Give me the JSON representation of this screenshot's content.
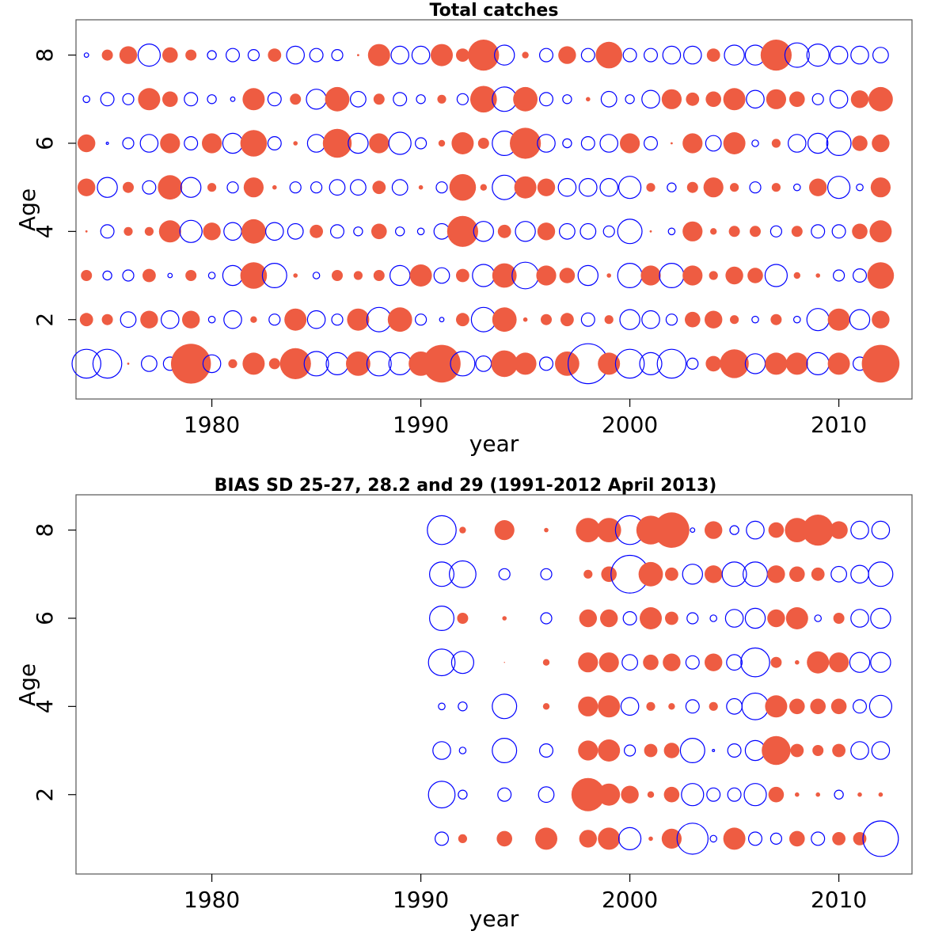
{
  "chart_data": [
    {
      "type": "scatter",
      "subtype": "bubble",
      "title": "Total catches",
      "xlabel": "year",
      "ylabel": "Age",
      "xlim": [
        1973.5,
        2013.5
      ],
      "ylim": [
        0.2,
        8.8
      ],
      "x_ticks": [
        1980,
        1990,
        2000,
        2010
      ],
      "y_ticks": [
        2,
        4,
        6,
        8
      ],
      "colors": {
        "positive": "#ee5c42",
        "negative": "#0000ff"
      },
      "legend": "none",
      "grid": false,
      "years": [
        1974,
        1975,
        1976,
        1977,
        1978,
        1979,
        1980,
        1981,
        1982,
        1983,
        1984,
        1985,
        1986,
        1987,
        1988,
        1989,
        1990,
        1991,
        1992,
        1993,
        1994,
        1995,
        1996,
        1997,
        1998,
        1999,
        2000,
        2001,
        2002,
        2003,
        2004,
        2005,
        2006,
        2007,
        2008,
        2009,
        2010,
        2011,
        2012
      ],
      "ages": [
        1,
        2,
        3,
        4,
        5,
        6,
        7,
        8
      ],
      "residuals": [
        [
          -1.3,
          -1.3,
          0.1,
          -0.7,
          -0.6,
          1.8,
          -0.8,
          0.4,
          1.0,
          0.5,
          1.4,
          -1.1,
          -1.0,
          1.1,
          -1.1,
          -1.0,
          1.1,
          1.7,
          -1.1,
          -0.7,
          1.2,
          1.0,
          -0.6,
          1.1,
          -1.8,
          1.0,
          -1.3,
          -1.0,
          -1.3,
          -0.5,
          0.7,
          1.3,
          -0.9,
          1.0,
          1.0,
          -1.0,
          1.0,
          -0.6,
          1.7
        ],
        [
          0.6,
          0.5,
          -0.7,
          0.8,
          -0.8,
          0.8,
          -0.3,
          -0.8,
          0.3,
          -0.5,
          1.0,
          -0.8,
          -0.5,
          1.0,
          -1.1,
          1.1,
          -0.5,
          -0.2,
          0.6,
          -1.1,
          1.1,
          0.2,
          0.5,
          0.6,
          -0.6,
          0.4,
          -0.9,
          -0.8,
          -0.5,
          0.7,
          0.8,
          0.4,
          -0.3,
          0.5,
          -0.3,
          -1.0,
          1.0,
          -0.9,
          0.8
        ],
        [
          0.5,
          -0.4,
          -0.5,
          0.6,
          -0.2,
          0.5,
          -0.3,
          -0.9,
          1.2,
          -1.1,
          0.2,
          -0.3,
          0.5,
          0.4,
          0.5,
          -0.9,
          1.0,
          -0.7,
          0.6,
          -1.0,
          1.1,
          -1.2,
          0.9,
          0.7,
          -0.9,
          0.2,
          -1.1,
          0.9,
          -1.1,
          0.9,
          0.4,
          0.8,
          0.7,
          -1.0,
          0.3,
          0.2,
          -0.5,
          -0.6,
          1.2
        ],
        [
          0.1,
          -0.6,
          0.4,
          0.4,
          1.0,
          -1.0,
          0.8,
          -0.8,
          1.1,
          -0.8,
          -0.7,
          0.6,
          -0.6,
          -0.4,
          0.7,
          -0.4,
          -0.3,
          -0.7,
          1.4,
          -0.9,
          0.6,
          -0.9,
          0.8,
          -0.7,
          -0.7,
          -0.5,
          -1.1,
          0.1,
          -0.3,
          0.9,
          0.3,
          0.5,
          0.5,
          -0.5,
          0.5,
          -0.6,
          -0.6,
          0.7,
          1.0
        ],
        [
          0.8,
          -0.9,
          0.5,
          -0.6,
          1.1,
          -0.9,
          0.4,
          -0.5,
          0.9,
          0.2,
          -0.5,
          -0.5,
          -0.7,
          -0.7,
          0.6,
          -0.7,
          0.2,
          -0.5,
          1.2,
          0.3,
          -1.1,
          1.0,
          0.8,
          -0.8,
          -0.8,
          -0.8,
          -1.0,
          0.4,
          -0.4,
          0.5,
          0.9,
          0.4,
          -0.5,
          0.4,
          -0.3,
          0.8,
          -1.0,
          -0.3,
          0.9
        ],
        [
          0.8,
          -0.1,
          -0.5,
          -0.8,
          0.9,
          -0.6,
          0.9,
          -0.9,
          1.2,
          -0.6,
          0.2,
          -0.8,
          1.3,
          -0.9,
          0.9,
          -1.0,
          -0.5,
          0.3,
          1.0,
          0.5,
          -1.1,
          1.4,
          -0.8,
          -0.4,
          -0.6,
          -0.8,
          0.9,
          -0.6,
          0.1,
          0.9,
          -0.7,
          1.0,
          -0.3,
          0.4,
          -0.8,
          -0.9,
          -1.1,
          0.7,
          0.8
        ],
        [
          -0.3,
          -0.6,
          -0.5,
          1.0,
          0.7,
          -0.6,
          -0.4,
          -0.2,
          1.0,
          -0.6,
          0.5,
          -0.9,
          1.1,
          -0.7,
          0.5,
          -0.6,
          -0.4,
          0.4,
          -0.5,
          1.2,
          -1.1,
          1.1,
          -0.6,
          -0.4,
          0.2,
          -0.7,
          -0.4,
          -0.8,
          0.9,
          0.6,
          0.7,
          1.0,
          -0.8,
          0.9,
          0.7,
          -0.5,
          -0.8,
          0.8,
          1.1
        ],
        [
          -0.2,
          0.5,
          0.8,
          -1.0,
          0.7,
          0.5,
          -0.4,
          -0.6,
          -0.5,
          0.6,
          -0.8,
          -0.6,
          -0.5,
          0.1,
          1.0,
          -0.8,
          -0.8,
          1.0,
          0.6,
          1.4,
          -0.9,
          0.3,
          -0.6,
          0.8,
          -0.6,
          1.2,
          -0.6,
          -0.6,
          -0.8,
          -0.8,
          0.6,
          -0.9,
          -0.9,
          1.4,
          -1.1,
          -1.0,
          -0.8,
          -0.8,
          -0.7
        ]
      ]
    },
    {
      "type": "scatter",
      "subtype": "bubble",
      "title": "BIAS SD 25-27, 28.2 and 29 (1991-2012 April 2013)",
      "xlabel": "year",
      "ylabel": "Age",
      "xlim": [
        1973.5,
        2013.5
      ],
      "ylim": [
        0.2,
        8.8
      ],
      "x_ticks": [
        1980,
        1990,
        2000,
        2010
      ],
      "y_ticks": [
        2,
        4,
        6,
        8
      ],
      "colors": {
        "positive": "#ee5c42",
        "negative": "#0000ff"
      },
      "legend": "none",
      "grid": false,
      "years": [
        1991,
        1992,
        1994,
        1996,
        1998,
        1999,
        2000,
        2001,
        2002,
        2003,
        2004,
        2005,
        2006,
        2007,
        2008,
        2009,
        2010,
        2011,
        2012
      ],
      "ages": [
        1,
        2,
        3,
        4,
        5,
        6,
        7,
        8
      ],
      "residuals": [
        [
          -0.6,
          0.4,
          0.7,
          1.0,
          0.8,
          1.0,
          -1.0,
          0.2,
          0.9,
          -1.4,
          -0.3,
          1.0,
          -0.6,
          -0.5,
          0.7,
          -0.6,
          0.6,
          0.6,
          -1.6
        ],
        [
          -1.2,
          -0.4,
          -0.6,
          -0.7,
          1.5,
          1.0,
          0.8,
          0.3,
          0.7,
          -1.0,
          -0.6,
          -0.6,
          -1.0,
          0.7,
          0.2,
          0.2,
          -0.4,
          0.2,
          0.2
        ],
        [
          -0.8,
          -0.3,
          -1.1,
          -0.6,
          0.9,
          1.0,
          -0.5,
          0.6,
          0.7,
          -1.1,
          -0.1,
          -0.6,
          -0.9,
          1.3,
          0.6,
          0.5,
          0.6,
          -0.8,
          -0.8
        ],
        [
          -0.3,
          -0.4,
          -1.1,
          0.3,
          0.9,
          1.0,
          -0.8,
          0.4,
          0.3,
          -0.6,
          0.4,
          -0.7,
          -1.2,
          1.0,
          0.7,
          0.7,
          0.7,
          -0.6,
          -1.0
        ],
        [
          -1.2,
          -1.0,
          0.05,
          0.3,
          0.9,
          0.9,
          -0.7,
          0.7,
          0.8,
          -0.6,
          0.8,
          -0.7,
          -1.3,
          0.5,
          0.2,
          1.0,
          0.9,
          -0.9,
          -0.9
        ],
        [
          -1.1,
          0.5,
          0.2,
          -0.5,
          0.8,
          0.8,
          -0.6,
          1.0,
          0.6,
          -0.5,
          -0.3,
          -0.8,
          -0.9,
          0.8,
          1.0,
          -0.3,
          0.5,
          -0.8,
          -0.9
        ],
        [
          -1.1,
          -1.2,
          -0.5,
          -0.5,
          0.4,
          0.7,
          -1.7,
          1.1,
          0.6,
          -0.9,
          0.8,
          -1.1,
          -1.1,
          0.8,
          0.7,
          0.6,
          -0.7,
          -0.8,
          -1.1
        ],
        [
          -1.3,
          0.3,
          0.9,
          0.2,
          1.1,
          1.1,
          -1.3,
          1.3,
          1.6,
          -0.2,
          0.8,
          -0.4,
          -0.8,
          0.7,
          1.1,
          1.4,
          0.8,
          -0.8,
          -0.8
        ]
      ]
    }
  ]
}
